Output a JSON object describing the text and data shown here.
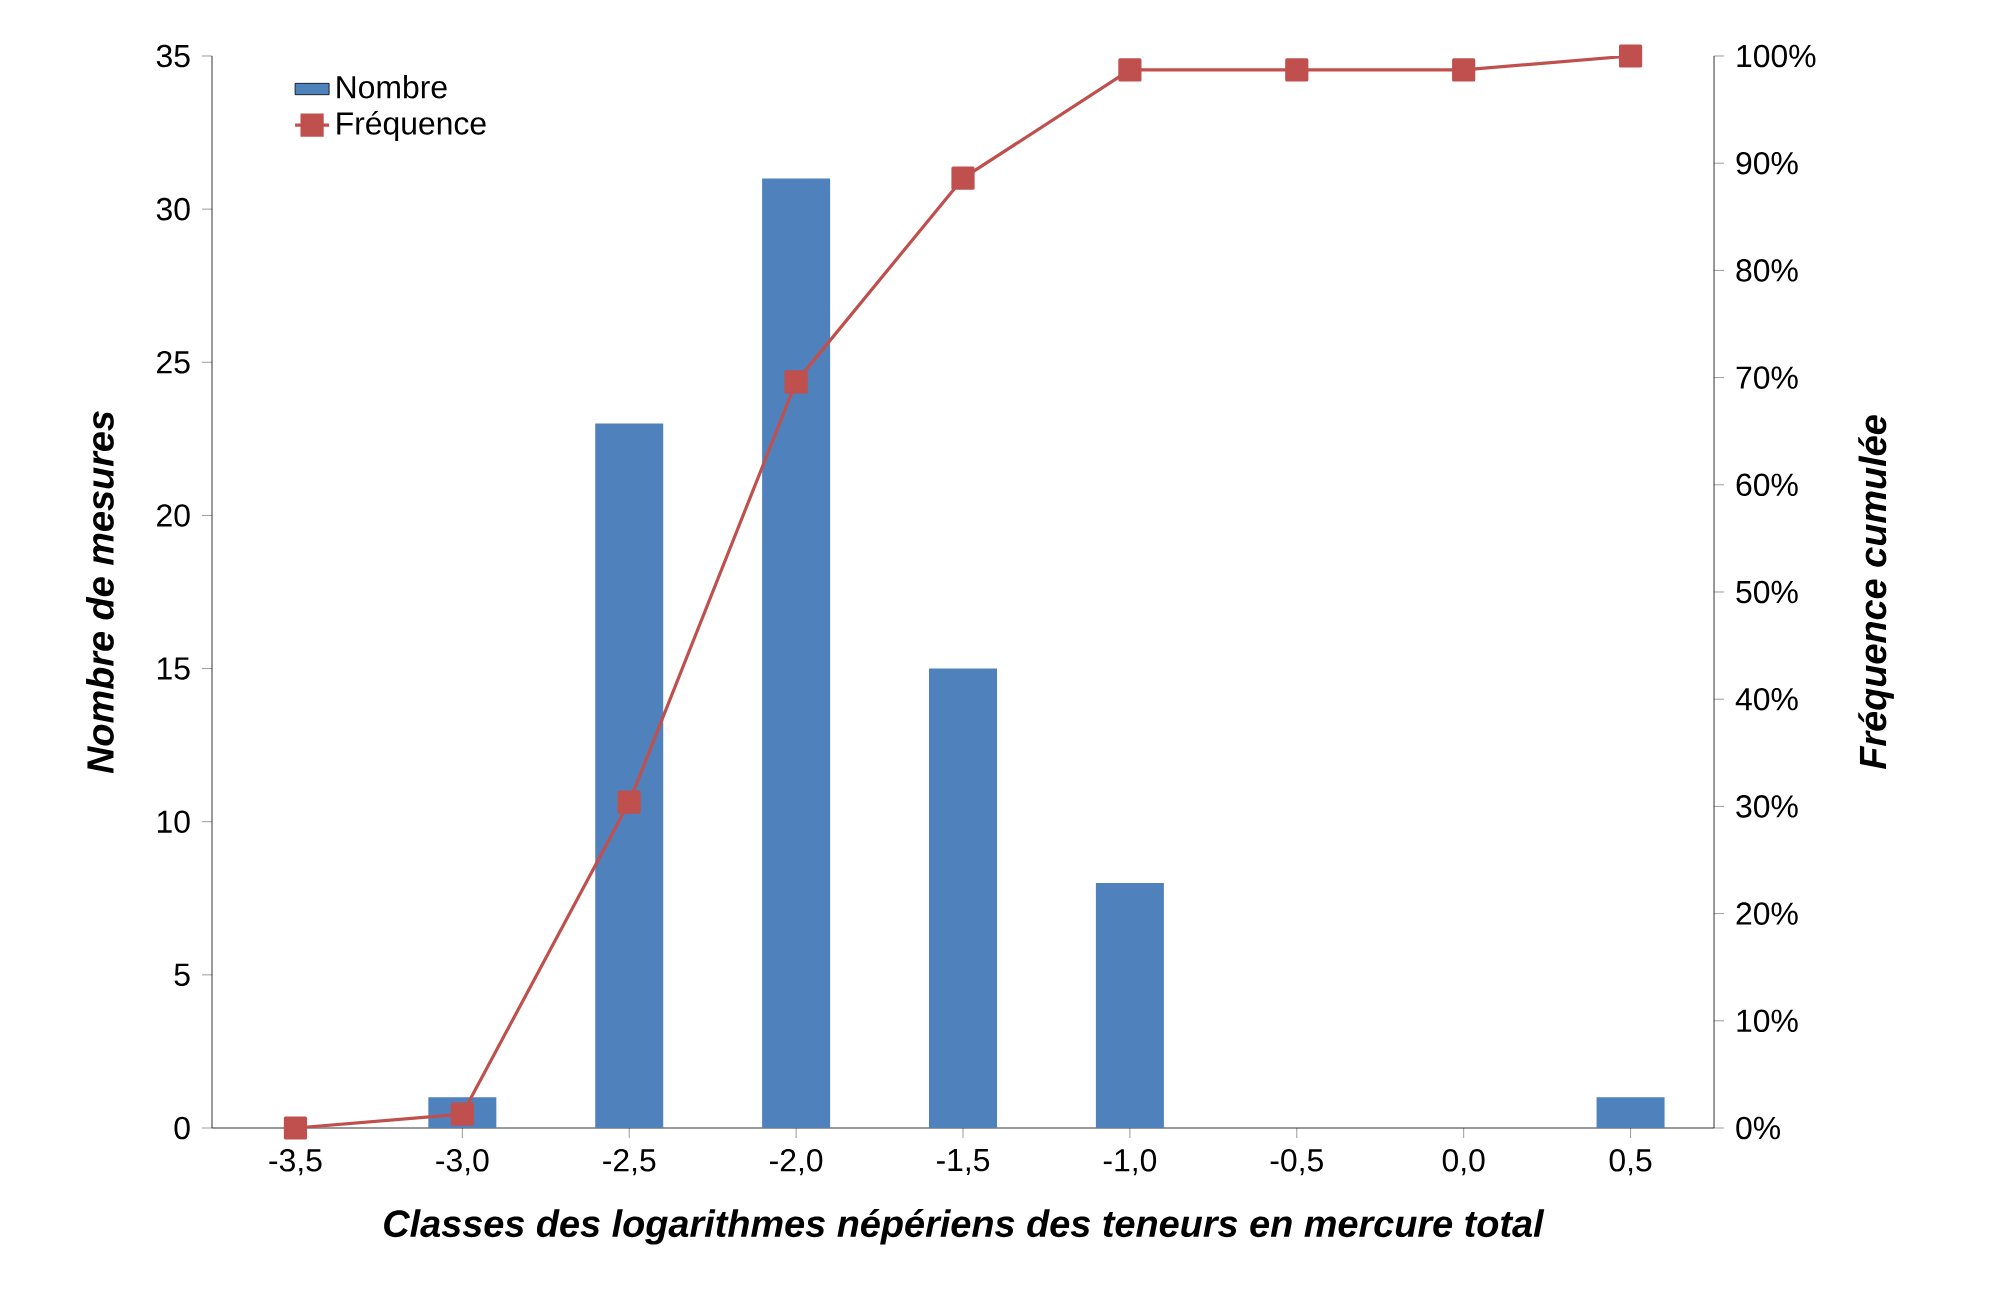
{
  "chart_data": {
    "type": "bar",
    "xlabel": "Classes des logarithmes népériens des teneurs en mercure total",
    "ylabel": "Nombre de mesures",
    "y2label": "Fréquence cumulée",
    "categories": [
      "-3,5",
      "-3,0",
      "-2,5",
      "-2,0",
      "-1,5",
      "-1,0",
      "-0,5",
      "0,0",
      "0,5"
    ],
    "series": [
      {
        "name": "Nombre",
        "color": "#4f81bd",
        "values": [
          0,
          1,
          23,
          31,
          15,
          8,
          0,
          0,
          1
        ]
      },
      {
        "name": "Fréquence",
        "type": "line",
        "axis": "y2",
        "color": "#c0504d",
        "marker": "square",
        "values": [
          0,
          1.3,
          30.4,
          69.6,
          88.6,
          98.7,
          98.7,
          98.7,
          100
        ]
      }
    ],
    "ylim": [
      0,
      35
    ],
    "yticks": [
      0,
      5,
      10,
      15,
      20,
      25,
      30,
      35
    ],
    "y2lim": [
      0,
      100
    ],
    "y2ticks": [
      {
        "value": 0,
        "label": "0%"
      },
      {
        "value": 10,
        "label": "10%"
      },
      {
        "value": 20,
        "label": "20%"
      },
      {
        "value": 30,
        "label": "30%"
      },
      {
        "value": 40,
        "label": "40%"
      },
      {
        "value": 50,
        "label": "50%"
      },
      {
        "value": 60,
        "label": "60%"
      },
      {
        "value": 70,
        "label": "70%"
      },
      {
        "value": 80,
        "label": "80%"
      },
      {
        "value": 90,
        "label": "90%"
      },
      {
        "value": 100,
        "label": "100%"
      }
    ],
    "grid": false,
    "legend": "top left"
  }
}
